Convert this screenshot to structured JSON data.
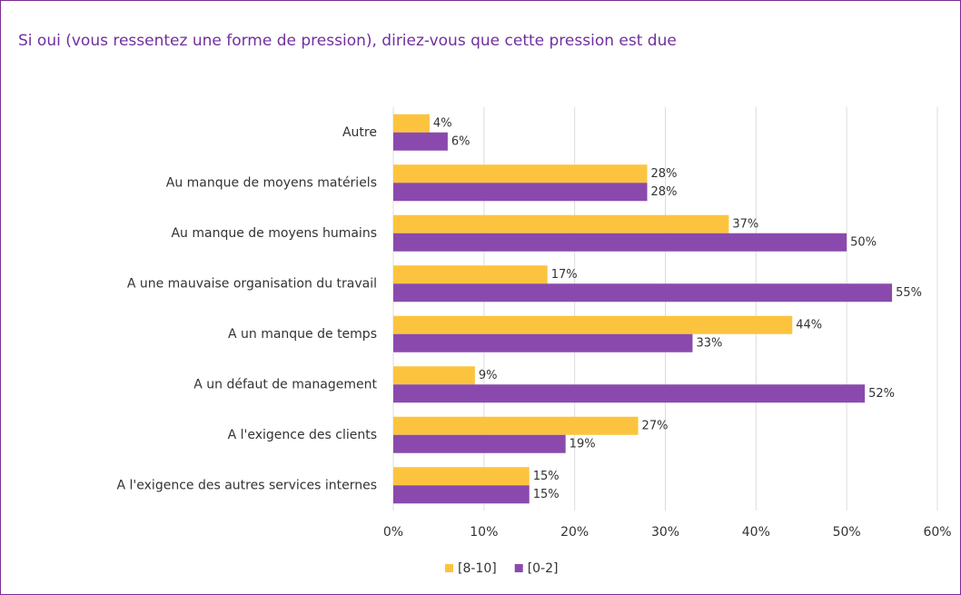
{
  "chart_data": {
    "type": "bar",
    "orientation": "horizontal",
    "title": "Si oui (vous ressentez une forme de pression), diriez-vous que cette pression est due",
    "categories": [
      "Autre",
      "Au manque de moyens matériels",
      "Au manque de moyens humains",
      "A une mauvaise organisation du travail",
      "A un manque de temps",
      "A un défaut de management",
      "A l'exigence des clients",
      "A l'exigence des autres services internes"
    ],
    "series": [
      {
        "name": "[8-10]",
        "color": "#fcc43e",
        "values": [
          4,
          28,
          37,
          17,
          44,
          9,
          27,
          15
        ],
        "value_labels": [
          "4%",
          "28%",
          "37%",
          "17%",
          "44%",
          "9%",
          "27%",
          "15%"
        ]
      },
      {
        "name": "[0-2]",
        "color": "#8a4aad",
        "values": [
          6,
          28,
          50,
          55,
          33,
          52,
          19,
          15
        ],
        "value_labels": [
          "6%",
          "28%",
          "50%",
          "55%",
          "33%",
          "52%",
          "19%",
          "15%"
        ]
      }
    ],
    "xlim": [
      0,
      60
    ],
    "xticks": [
      {
        "value": 0,
        "label": "0%"
      },
      {
        "value": 10,
        "label": "10%"
      },
      {
        "value": 20,
        "label": "20%"
      },
      {
        "value": 30,
        "label": "30%"
      },
      {
        "value": 40,
        "label": "40%"
      },
      {
        "value": 50,
        "label": "50%"
      },
      {
        "value": 60,
        "label": "60%"
      }
    ],
    "grid": true,
    "legend": "bottom"
  }
}
